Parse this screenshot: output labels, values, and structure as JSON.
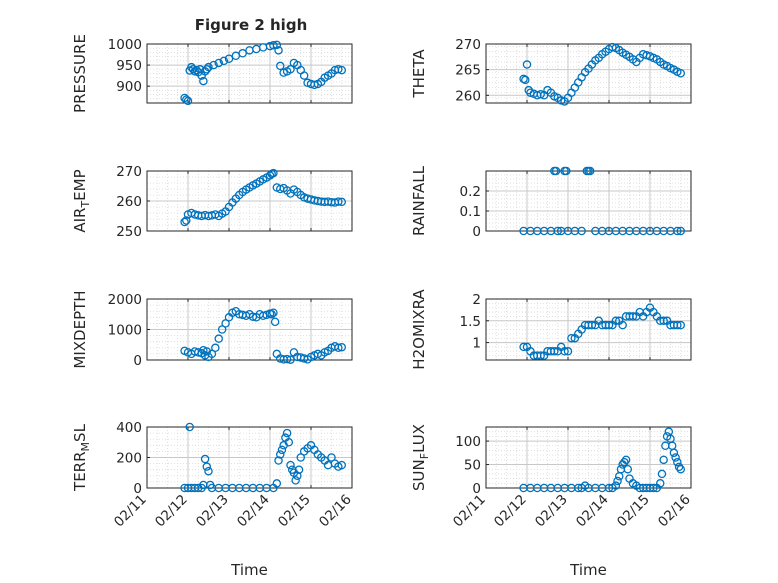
{
  "figure_title": "Figure 2 high",
  "x_axis": {
    "label": "Time",
    "ticks": [
      "02/11",
      "02/12",
      "02/13",
      "02/14",
      "02/15",
      "02/16"
    ],
    "range_days": [
      0,
      5
    ]
  },
  "colors": {
    "marker": "#0072bd",
    "grid": "#d9d9d9",
    "axis": "#262626"
  },
  "chart_data": [
    {
      "type": "scatter",
      "id": "pressure",
      "ylabel": "PRESSURE",
      "ylim": [
        860,
        1000
      ],
      "yticks": [
        "1000",
        "950",
        "900"
      ],
      "yticks_values": [
        1000,
        950,
        900
      ],
      "grid": true,
      "x": [
        "02/11 22:00",
        "02/11 23:00",
        "02/12 00:00",
        "02/12 01:00",
        "02/12 02:00",
        "02/12 03:00",
        "02/12 04:00",
        "02/12 05:00",
        "02/12 06:00",
        "02/12 07:00",
        "02/12 08:00",
        "02/12 09:00",
        "02/12 10:00",
        "02/12 11:00",
        "02/12 12:00",
        "02/12 15:00",
        "02/12 18:00",
        "02/12 21:00",
        "02/13 00:00",
        "02/13 04:00",
        "02/13 08:00",
        "02/13 12:00",
        "02/13 16:00",
        "02/13 20:00",
        "02/14 00:00",
        "02/14 02:00",
        "02/14 04:00",
        "02/14 05:00",
        "02/14 06:00",
        "02/14 08:00",
        "02/14 10:00",
        "02/14 12:00",
        "02/14 14:00",
        "02/14 16:00",
        "02/14 18:00",
        "02/14 20:00",
        "02/14 22:00",
        "02/15 00:00",
        "02/15 02:00",
        "02/15 04:00",
        "02/15 06:00",
        "02/15 08:00",
        "02/15 10:00",
        "02/15 12:00",
        "02/15 14:00",
        "02/15 16:00",
        "02/15 18:00"
      ],
      "values": [
        872,
        868,
        865,
        937,
        945,
        940,
        935,
        938,
        933,
        940,
        925,
        912,
        935,
        940,
        945,
        950,
        955,
        960,
        965,
        972,
        978,
        985,
        988,
        992,
        995,
        997,
        998,
        985,
        948,
        932,
        935,
        940,
        955,
        950,
        938,
        925,
        908,
        905,
        903,
        905,
        910,
        920,
        925,
        930,
        938,
        940,
        938
      ]
    },
    {
      "type": "scatter",
      "id": "theta",
      "ylabel": "THETA",
      "ylim": [
        258.5,
        270
      ],
      "yticks": [
        "270",
        "265",
        "260"
      ],
      "yticks_values": [
        270,
        265,
        260
      ],
      "grid": true,
      "x": [
        "02/11 22:00",
        "02/11 23:00",
        "02/12 00:00",
        "02/12 01:00",
        "02/12 02:00",
        "02/12 04:00",
        "02/12 06:00",
        "02/12 08:00",
        "02/12 10:00",
        "02/12 12:00",
        "02/12 14:00",
        "02/12 16:00",
        "02/12 18:00",
        "02/12 20:00",
        "02/12 22:00",
        "02/13 00:00",
        "02/13 02:00",
        "02/13 04:00",
        "02/13 06:00",
        "02/13 08:00",
        "02/13 10:00",
        "02/13 12:00",
        "02/13 14:00",
        "02/13 16:00",
        "02/13 18:00",
        "02/13 20:00",
        "02/13 22:00",
        "02/14 00:00",
        "02/14 02:00",
        "02/14 04:00",
        "02/14 06:00",
        "02/14 08:00",
        "02/14 10:00",
        "02/14 12:00",
        "02/14 14:00",
        "02/14 16:00",
        "02/14 18:00",
        "02/14 20:00",
        "02/14 22:00",
        "02/15 00:00",
        "02/15 02:00",
        "02/15 04:00",
        "02/15 06:00",
        "02/15 08:00",
        "02/15 10:00",
        "02/15 12:00",
        "02/15 14:00",
        "02/15 16:00",
        "02/15 18:00"
      ],
      "values": [
        263.2,
        263.0,
        266.0,
        261.0,
        260.5,
        260.3,
        260.0,
        260.2,
        260.0,
        261.0,
        260.5,
        259.8,
        259.5,
        259.0,
        258.8,
        259.5,
        260.5,
        261.5,
        262.5,
        263.5,
        264.5,
        265.2,
        266.0,
        266.8,
        267.3,
        268.0,
        268.5,
        269.0,
        269.4,
        269.2,
        268.8,
        268.3,
        267.9,
        267.5,
        267.0,
        266.5,
        267.3,
        268.0,
        267.8,
        267.6,
        267.3,
        267.0,
        266.5,
        266.0,
        265.7,
        265.3,
        265.0,
        264.6,
        264.3
      ]
    },
    {
      "type": "scatter",
      "id": "air_temp",
      "ylabel": "AIR_TEMP",
      "ylim": [
        250,
        270
      ],
      "yticks": [
        "270",
        "260",
        "250"
      ],
      "yticks_values": [
        270,
        260,
        250
      ],
      "grid": true,
      "x": [
        "02/11 22:00",
        "02/11 23:00",
        "02/12 00:00",
        "02/12 02:00",
        "02/12 04:00",
        "02/12 06:00",
        "02/12 08:00",
        "02/12 10:00",
        "02/12 12:00",
        "02/12 14:00",
        "02/12 16:00",
        "02/12 18:00",
        "02/12 20:00",
        "02/12 22:00",
        "02/13 00:00",
        "02/13 02:00",
        "02/13 04:00",
        "02/13 06:00",
        "02/13 08:00",
        "02/13 10:00",
        "02/13 12:00",
        "02/13 14:00",
        "02/13 16:00",
        "02/13 18:00",
        "02/13 20:00",
        "02/13 22:00",
        "02/14 00:00",
        "02/14 01:00",
        "02/14 02:00",
        "02/14 04:00",
        "02/14 06:00",
        "02/14 08:00",
        "02/14 10:00",
        "02/14 12:00",
        "02/14 14:00",
        "02/14 16:00",
        "02/14 18:00",
        "02/14 20:00",
        "02/14 22:00",
        "02/15 00:00",
        "02/15 02:00",
        "02/15 04:00",
        "02/15 06:00",
        "02/15 08:00",
        "02/15 10:00",
        "02/15 12:00",
        "02/15 14:00",
        "02/15 16:00",
        "02/15 18:00"
      ],
      "values": [
        253.0,
        253.5,
        255.5,
        256.0,
        255.5,
        255.2,
        255.0,
        255.3,
        255.0,
        255.2,
        255.5,
        255.0,
        255.8,
        256.5,
        258.0,
        259.5,
        260.8,
        262.0,
        263.0,
        263.8,
        264.5,
        265.2,
        265.8,
        266.5,
        267.2,
        267.8,
        268.5,
        269.0,
        269.3,
        264.5,
        264.0,
        264.3,
        263.5,
        262.5,
        263.8,
        263.0,
        262.0,
        261.2,
        260.8,
        260.5,
        260.2,
        260.0,
        259.8,
        259.7,
        259.8,
        259.6,
        259.5,
        259.8,
        259.7
      ]
    },
    {
      "type": "scatter",
      "id": "rainfall",
      "ylabel": "RAINFALL",
      "ylim": [
        0,
        0.3
      ],
      "yticks": [
        "0.2",
        "0.1",
        "0"
      ],
      "yticks_values": [
        0.2,
        0.1,
        0
      ],
      "grid": true,
      "x": [
        "02/11 22:00",
        "02/12 02:00",
        "02/12 06:00",
        "02/12 10:00",
        "02/12 14:00",
        "02/12 16:00",
        "02/12 17:00",
        "02/12 18:00",
        "02/12 20:00",
        "02/12 22:00",
        "02/12 23:00",
        "02/13 00:00",
        "02/13 04:00",
        "02/13 08:00",
        "02/13 11:00",
        "02/13 12:00",
        "02/13 13:00",
        "02/13 16:00",
        "02/13 20:00",
        "02/14 00:00",
        "02/14 04:00",
        "02/14 08:00",
        "02/14 12:00",
        "02/14 16:00",
        "02/14 20:00",
        "02/15 00:00",
        "02/15 04:00",
        "02/15 08:00",
        "02/15 12:00",
        "02/15 16:00",
        "02/15 18:00"
      ],
      "values": [
        0,
        0,
        0,
        0,
        0,
        0.3,
        0.3,
        0,
        0,
        0.3,
        0.3,
        0,
        0,
        0,
        0.3,
        0.3,
        0.3,
        0,
        0,
        0,
        0,
        0,
        0,
        0,
        0,
        0,
        0,
        0,
        0,
        0,
        0
      ]
    },
    {
      "type": "scatter",
      "id": "mixdepth",
      "ylabel": "MIXDEPTH",
      "ylim": [
        0,
        2000
      ],
      "yticks": [
        "2000",
        "1000",
        "0"
      ],
      "yticks_values": [
        2000,
        1000,
        0
      ],
      "grid": true,
      "x": [
        "02/11 22:00",
        "02/12 00:00",
        "02/12 02:00",
        "02/12 04:00",
        "02/12 06:00",
        "02/12 08:00",
        "02/12 09:00",
        "02/12 10:00",
        "02/12 11:00",
        "02/12 12:00",
        "02/12 14:00",
        "02/12 16:00",
        "02/12 18:00",
        "02/12 20:00",
        "02/12 22:00",
        "02/13 00:00",
        "02/13 02:00",
        "02/13 04:00",
        "02/13 06:00",
        "02/13 08:00",
        "02/13 10:00",
        "02/13 12:00",
        "02/13 14:00",
        "02/13 16:00",
        "02/13 18:00",
        "02/13 20:00",
        "02/13 22:00",
        "02/14 00:00",
        "02/14 01:00",
        "02/14 02:00",
        "02/14 03:00",
        "02/14 04:00",
        "02/14 06:00",
        "02/14 08:00",
        "02/14 10:00",
        "02/14 12:00",
        "02/14 14:00",
        "02/14 16:00",
        "02/14 18:00",
        "02/14 20:00",
        "02/14 22:00",
        "02/15 00:00",
        "02/15 02:00",
        "02/15 04:00",
        "02/15 06:00",
        "02/15 08:00",
        "02/15 10:00",
        "02/15 12:00",
        "02/15 14:00",
        "02/15 16:00",
        "02/15 18:00"
      ],
      "values": [
        300,
        250,
        200,
        280,
        250,
        220,
        320,
        150,
        280,
        100,
        200,
        400,
        700,
        1000,
        1200,
        1400,
        1550,
        1600,
        1500,
        1480,
        1450,
        1500,
        1420,
        1400,
        1500,
        1450,
        1480,
        1520,
        1500,
        1550,
        1250,
        200,
        50,
        20,
        30,
        10,
        250,
        100,
        80,
        50,
        20,
        100,
        150,
        200,
        150,
        250,
        300,
        400,
        450,
        400,
        420
      ]
    },
    {
      "type": "scatter",
      "id": "h2omixra",
      "ylabel": "H2OMIXRA",
      "ylim": [
        0.6,
        2
      ],
      "yticks": [
        "2",
        "1.5",
        "1"
      ],
      "yticks_values": [
        2,
        1.5,
        1
      ],
      "grid": true,
      "x": [
        "02/11 22:00",
        "02/12 00:00",
        "02/12 02:00",
        "02/12 04:00",
        "02/12 06:00",
        "02/12 08:00",
        "02/12 10:00",
        "02/12 12:00",
        "02/12 14:00",
        "02/12 16:00",
        "02/12 18:00",
        "02/12 20:00",
        "02/12 22:00",
        "02/13 00:00",
        "02/13 02:00",
        "02/13 04:00",
        "02/13 06:00",
        "02/13 08:00",
        "02/13 10:00",
        "02/13 12:00",
        "02/13 14:00",
        "02/13 16:00",
        "02/13 18:00",
        "02/13 20:00",
        "02/13 22:00",
        "02/14 00:00",
        "02/14 02:00",
        "02/14 04:00",
        "02/14 06:00",
        "02/14 08:00",
        "02/14 10:00",
        "02/14 12:00",
        "02/14 14:00",
        "02/14 16:00",
        "02/14 18:00",
        "02/14 20:00",
        "02/14 22:00",
        "02/15 00:00",
        "02/15 02:00",
        "02/15 04:00",
        "02/15 06:00",
        "02/15 08:00",
        "02/15 10:00",
        "02/15 12:00",
        "02/15 14:00",
        "02/15 16:00",
        "02/15 18:00"
      ],
      "values": [
        0.9,
        0.9,
        0.8,
        0.7,
        0.7,
        0.7,
        0.7,
        0.8,
        0.8,
        0.8,
        0.8,
        0.9,
        0.8,
        0.8,
        1.1,
        1.1,
        1.2,
        1.3,
        1.4,
        1.4,
        1.4,
        1.4,
        1.5,
        1.4,
        1.4,
        1.4,
        1.4,
        1.5,
        1.5,
        1.4,
        1.6,
        1.6,
        1.6,
        1.6,
        1.7,
        1.6,
        1.7,
        1.8,
        1.7,
        1.6,
        1.5,
        1.5,
        1.5,
        1.4,
        1.4,
        1.4,
        1.4
      ]
    },
    {
      "type": "scatter",
      "id": "terr_msl",
      "ylabel": "TERR_MSL",
      "ylim": [
        0,
        400
      ],
      "yticks": [
        "400",
        "200",
        "0"
      ],
      "yticks_values": [
        400,
        200,
        0
      ],
      "grid": true,
      "x": [
        "02/11 22:00",
        "02/12 00:00",
        "02/12 01:00",
        "02/12 02:00",
        "02/12 04:00",
        "02/12 06:00",
        "02/12 08:00",
        "02/12 09:00",
        "02/12 10:00",
        "02/12 11:00",
        "02/12 12:00",
        "02/12 13:00",
        "02/12 14:00",
        "02/12 18:00",
        "02/12 22:00",
        "02/13 02:00",
        "02/13 06:00",
        "02/13 10:00",
        "02/13 14:00",
        "02/13 18:00",
        "02/13 22:00",
        "02/14 02:00",
        "02/14 04:00",
        "02/14 05:00",
        "02/14 06:00",
        "02/14 07:00",
        "02/14 08:00",
        "02/14 09:00",
        "02/14 10:00",
        "02/14 11:00",
        "02/14 12:00",
        "02/14 13:00",
        "02/14 14:00",
        "02/14 15:00",
        "02/14 16:00",
        "02/14 17:00",
        "02/14 18:00",
        "02/14 20:00",
        "02/14 22:00",
        "02/15 00:00",
        "02/15 02:00",
        "02/15 04:00",
        "02/15 06:00",
        "02/15 08:00",
        "02/15 10:00",
        "02/15 12:00",
        "02/15 14:00",
        "02/15 16:00",
        "02/15 18:00"
      ],
      "values": [
        0,
        0,
        400,
        0,
        0,
        0,
        0,
        20,
        190,
        140,
        110,
        20,
        0,
        0,
        0,
        0,
        0,
        0,
        0,
        0,
        0,
        0,
        30,
        180,
        220,
        250,
        280,
        330,
        360,
        300,
        150,
        120,
        100,
        50,
        80,
        120,
        200,
        240,
        260,
        280,
        250,
        220,
        200,
        180,
        150,
        200,
        160,
        140,
        150
      ]
    },
    {
      "type": "scatter",
      "id": "sun_flux",
      "ylabel": "SUN_FLUX",
      "ylim": [
        0,
        130
      ],
      "yticks": [
        "100",
        "50",
        "0"
      ],
      "yticks_values": [
        100,
        50,
        0
      ],
      "grid": true,
      "x": [
        "02/11 22:00",
        "02/12 02:00",
        "02/12 06:00",
        "02/12 10:00",
        "02/12 14:00",
        "02/12 18:00",
        "02/12 22:00",
        "02/13 02:00",
        "02/13 06:00",
        "02/13 08:00",
        "02/13 10:00",
        "02/13 12:00",
        "02/13 16:00",
        "02/13 20:00",
        "02/14 00:00",
        "02/14 02:00",
        "02/14 04:00",
        "02/14 05:00",
        "02/14 06:00",
        "02/14 07:00",
        "02/14 08:00",
        "02/14 09:00",
        "02/14 10:00",
        "02/14 11:00",
        "02/14 12:00",
        "02/14 14:00",
        "02/14 16:00",
        "02/14 18:00",
        "02/14 20:00",
        "02/14 22:00",
        "02/15 00:00",
        "02/15 02:00",
        "02/15 04:00",
        "02/15 06:00",
        "02/15 07:00",
        "02/15 08:00",
        "02/15 09:00",
        "02/15 10:00",
        "02/15 11:00",
        "02/15 12:00",
        "02/15 13:00",
        "02/15 14:00",
        "02/15 15:00",
        "02/15 16:00",
        "02/15 17:00",
        "02/15 18:00"
      ],
      "values": [
        0,
        0,
        0,
        0,
        0,
        0,
        0,
        0,
        0,
        0,
        5,
        0,
        0,
        0,
        0,
        0,
        5,
        15,
        25,
        40,
        50,
        55,
        60,
        40,
        20,
        10,
        5,
        0,
        0,
        0,
        0,
        0,
        0,
        10,
        30,
        60,
        90,
        110,
        120,
        105,
        90,
        75,
        65,
        55,
        45,
        40
      ]
    }
  ]
}
